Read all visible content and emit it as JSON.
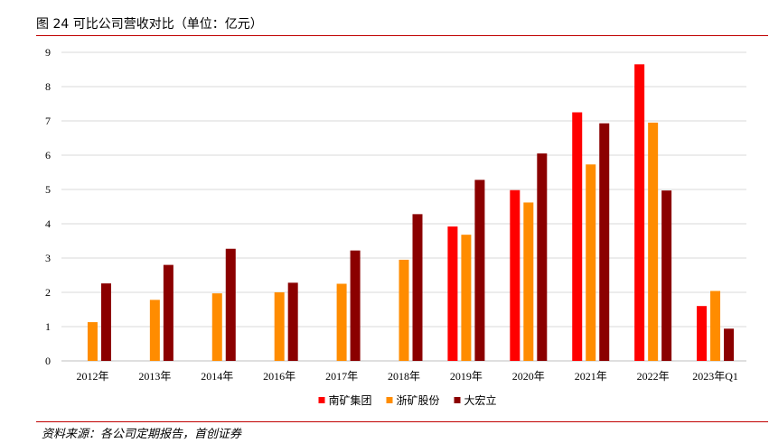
{
  "title": "图 24 可比公司营收对比（单位：亿元）",
  "source": "资料来源：各公司定期报告，首创证券",
  "chart_data": {
    "type": "bar",
    "categories": [
      "2012年",
      "2013年",
      "2014年",
      "2016年",
      "2017年",
      "2018年",
      "2019年",
      "2020年",
      "2021年",
      "2022年",
      "2023年Q1"
    ],
    "ylim": [
      0,
      9
    ],
    "yticks": [
      0,
      1,
      2,
      3,
      4,
      5,
      6,
      7,
      8,
      9
    ],
    "grid": true,
    "legend_position": "bottom",
    "series": [
      {
        "name": "南矿集团",
        "color": "#ff0000",
        "values": [
          null,
          null,
          null,
          null,
          null,
          null,
          3.92,
          4.98,
          7.25,
          8.65,
          1.6
        ]
      },
      {
        "name": "浙矿股份",
        "color": "#ff8c00",
        "values": [
          1.13,
          1.78,
          1.97,
          2.0,
          2.25,
          2.95,
          3.68,
          4.62,
          5.73,
          6.95,
          2.04
        ]
      },
      {
        "name": "大宏立",
        "color": "#8b0000",
        "values": [
          2.26,
          2.8,
          3.27,
          2.28,
          3.22,
          4.28,
          5.28,
          6.05,
          6.93,
          4.97,
          0.94
        ]
      }
    ]
  }
}
